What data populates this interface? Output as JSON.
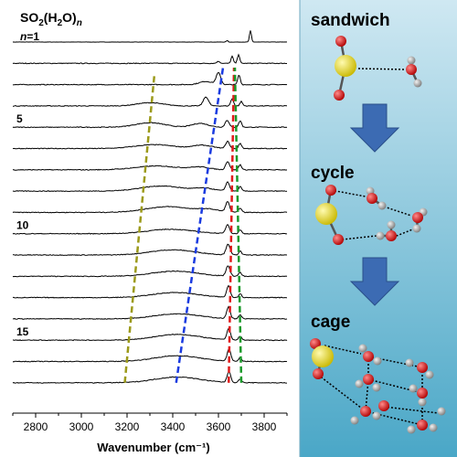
{
  "figure": {
    "formula": {
      "main": "SO",
      "sub1": "2",
      "mid1": "(H",
      "sub2": "2",
      "mid2": "O)",
      "sub3": "n"
    },
    "n_label": {
      "italic": "n",
      "rest": "=1"
    },
    "row_labels": [
      {
        "text": "5",
        "row": 4
      },
      {
        "text": "10",
        "row": 9
      },
      {
        "text": "15",
        "row": 14
      }
    ],
    "x_axis_label": "Wavenumber (cm⁻¹)",
    "panel_labels": {
      "top": "sandwich",
      "middle": "cycle",
      "bottom": "cage"
    }
  },
  "chart_data": {
    "type": "line",
    "title": "SO2(H2O)n",
    "xlabel": "Wavenumber (cm⁻¹)",
    "ylabel": "",
    "xlim": [
      2700,
      3900
    ],
    "x_ticks": [
      2800,
      3000,
      3200,
      3400,
      3600,
      3800
    ],
    "traces": [
      {
        "n": 1,
        "peaks": [
          {
            "x": 3638,
            "h": 0.12,
            "w": 5
          },
          {
            "x": 3740,
            "h": 0.9,
            "w": 6
          }
        ],
        "broad": []
      },
      {
        "n": 2,
        "peaks": [
          {
            "x": 3600,
            "h": 0.15,
            "w": 10
          },
          {
            "x": 3660,
            "h": 0.55,
            "w": 7
          },
          {
            "x": 3688,
            "h": 0.7,
            "w": 7
          }
        ],
        "broad": []
      },
      {
        "n": 3,
        "peaks": [
          {
            "x": 3600,
            "h": 0.9,
            "w": 14
          },
          {
            "x": 3690,
            "h": 0.75,
            "w": 8
          }
        ],
        "broad": [
          {
            "x": 3545,
            "h": 0.25,
            "w": 40
          }
        ]
      },
      {
        "n": 4,
        "peaks": [
          {
            "x": 3545,
            "h": 0.7,
            "w": 16
          },
          {
            "x": 3660,
            "h": 0.55,
            "w": 9
          },
          {
            "x": 3700,
            "h": 0.35,
            "w": 8
          }
        ],
        "broad": [
          {
            "x": 3300,
            "h": 0.25,
            "w": 80
          }
        ]
      },
      {
        "n": 5,
        "peaks": [
          {
            "x": 3638,
            "h": 0.55,
            "w": 12
          },
          {
            "x": 3695,
            "h": 0.5,
            "w": 9
          }
        ],
        "broad": [
          {
            "x": 3300,
            "h": 0.35,
            "w": 90
          },
          {
            "x": 3520,
            "h": 0.3,
            "w": 50
          }
        ]
      },
      {
        "n": 6,
        "peaks": [
          {
            "x": 3640,
            "h": 0.55,
            "w": 12
          },
          {
            "x": 3695,
            "h": 0.4,
            "w": 9
          }
        ],
        "broad": [
          {
            "x": 3320,
            "h": 0.3,
            "w": 120
          },
          {
            "x": 3530,
            "h": 0.25,
            "w": 60
          }
        ]
      },
      {
        "n": 7,
        "peaks": [
          {
            "x": 3640,
            "h": 0.65,
            "w": 12
          },
          {
            "x": 3695,
            "h": 0.4,
            "w": 9
          }
        ],
        "broad": [
          {
            "x": 3330,
            "h": 0.3,
            "w": 130
          },
          {
            "x": 3520,
            "h": 0.2,
            "w": 60
          }
        ]
      },
      {
        "n": 8,
        "peaks": [
          {
            "x": 3640,
            "h": 0.7,
            "w": 12
          },
          {
            "x": 3695,
            "h": 0.35,
            "w": 9
          }
        ],
        "broad": [
          {
            "x": 3350,
            "h": 0.4,
            "w": 130
          },
          {
            "x": 3540,
            "h": 0.2,
            "w": 60
          }
        ]
      },
      {
        "n": 9,
        "peaks": [
          {
            "x": 3640,
            "h": 0.8,
            "w": 12
          },
          {
            "x": 3695,
            "h": 0.35,
            "w": 9
          }
        ],
        "broad": [
          {
            "x": 3380,
            "h": 0.45,
            "w": 140
          },
          {
            "x": 3560,
            "h": 0.2,
            "w": 60
          }
        ]
      },
      {
        "n": 10,
        "peaks": [
          {
            "x": 3640,
            "h": 0.7,
            "w": 12
          },
          {
            "x": 3695,
            "h": 0.3,
            "w": 9
          }
        ],
        "broad": [
          {
            "x": 3390,
            "h": 0.35,
            "w": 140
          }
        ]
      },
      {
        "n": 11,
        "peaks": [
          {
            "x": 3642,
            "h": 0.85,
            "w": 12
          },
          {
            "x": 3695,
            "h": 0.3,
            "w": 9
          }
        ],
        "broad": [
          {
            "x": 3400,
            "h": 0.4,
            "w": 140
          }
        ]
      },
      {
        "n": 12,
        "peaks": [
          {
            "x": 3642,
            "h": 0.8,
            "w": 12
          },
          {
            "x": 3695,
            "h": 0.3,
            "w": 9
          }
        ],
        "broad": [
          {
            "x": 3410,
            "h": 0.4,
            "w": 140
          }
        ]
      },
      {
        "n": 13,
        "peaks": [
          {
            "x": 3644,
            "h": 0.9,
            "w": 11
          },
          {
            "x": 3695,
            "h": 0.3,
            "w": 9
          }
        ],
        "broad": [
          {
            "x": 3410,
            "h": 0.4,
            "w": 140
          }
        ]
      },
      {
        "n": 14,
        "peaks": [
          {
            "x": 3644,
            "h": 0.9,
            "w": 11
          },
          {
            "x": 3695,
            "h": 0.3,
            "w": 9
          }
        ],
        "broad": [
          {
            "x": 3420,
            "h": 0.4,
            "w": 140
          }
        ]
      },
      {
        "n": 15,
        "peaks": [
          {
            "x": 3645,
            "h": 0.9,
            "w": 11
          },
          {
            "x": 3695,
            "h": 0.3,
            "w": 9
          }
        ],
        "broad": [
          {
            "x": 3420,
            "h": 0.45,
            "w": 140
          }
        ]
      },
      {
        "n": 16,
        "peaks": [
          {
            "x": 3646,
            "h": 0.95,
            "w": 11
          },
          {
            "x": 3695,
            "h": 0.3,
            "w": 9
          }
        ],
        "broad": [
          {
            "x": 3420,
            "h": 0.45,
            "w": 140
          }
        ]
      },
      {
        "n": 17,
        "peaks": [
          {
            "x": 3646,
            "h": 0.85,
            "w": 11
          },
          {
            "x": 3695,
            "h": 0.3,
            "w": 9
          }
        ],
        "broad": [
          {
            "x": 3420,
            "h": 0.45,
            "w": 140
          }
        ]
      }
    ],
    "guide_lines": [
      {
        "color": "#9c9a1a",
        "from": {
          "x": 3190,
          "n": 17
        },
        "to": {
          "x": 3320,
          "n": 2.5
        }
      },
      {
        "color": "#1a3be0",
        "from": {
          "x": 3415,
          "n": 17
        },
        "to": {
          "x": 3620,
          "n": 2.2
        }
      },
      {
        "color": "#e01a1a",
        "from": {
          "x": 3645,
          "n": 17
        },
        "to": {
          "x": 3668,
          "n": 2.2
        }
      },
      {
        "color": "#1a9a2a",
        "from": {
          "x": 3700,
          "n": 17
        },
        "to": {
          "x": 3672,
          "n": 2.2
        }
      }
    ],
    "grid": false
  },
  "colors": {
    "panel_top": "#cfe8f2",
    "panel_bottom": "#4aa7c7",
    "arrow": "#3c6bb3",
    "sulfur": "#e6d800",
    "oxygen": "#d61a1a",
    "hydrogen": "#9a9a9a"
  }
}
